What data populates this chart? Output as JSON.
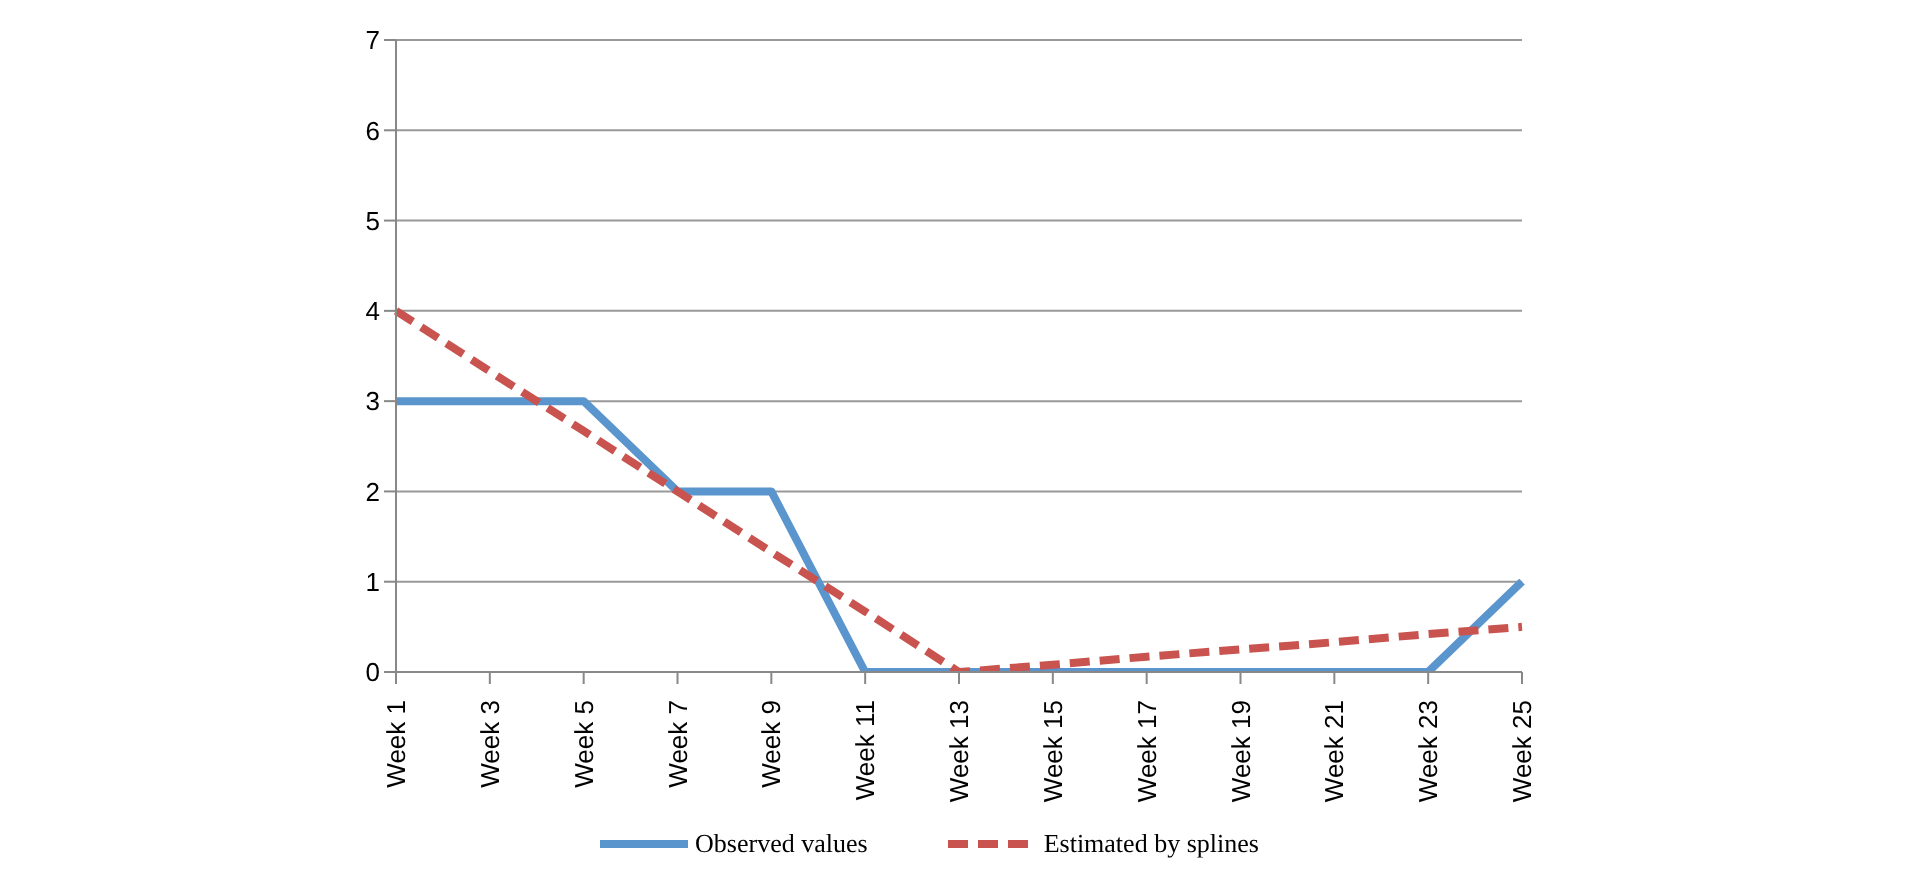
{
  "chart_data": {
    "type": "line",
    "categories": [
      "Week 1",
      "Week 3",
      "Week 5",
      "Week 7",
      "Week 9",
      "Week 11",
      "Week 13",
      "Week 15",
      "Week 17",
      "Week 19",
      "Week 21",
      "Week 23",
      "Week 25"
    ],
    "series": [
      {
        "name": "Observed values",
        "color": "#5a96cd",
        "line_style": "solid",
        "values": [
          3,
          3,
          3,
          2,
          2,
          0,
          0,
          0,
          0,
          0,
          0,
          0,
          1
        ]
      },
      {
        "name": "Estimated by splines",
        "color": "#c8534f",
        "line_style": "dashed",
        "values": [
          4,
          3.33,
          2.67,
          2,
          1.33,
          0.67,
          0,
          0.08,
          0.17,
          0.25,
          0.33,
          0.42,
          0.5
        ]
      }
    ],
    "ylim": [
      0,
      7
    ],
    "yticks": [
      0,
      1,
      2,
      3,
      4,
      5,
      6,
      7
    ],
    "grid": "y",
    "legend": "bottom",
    "marker": "none"
  }
}
